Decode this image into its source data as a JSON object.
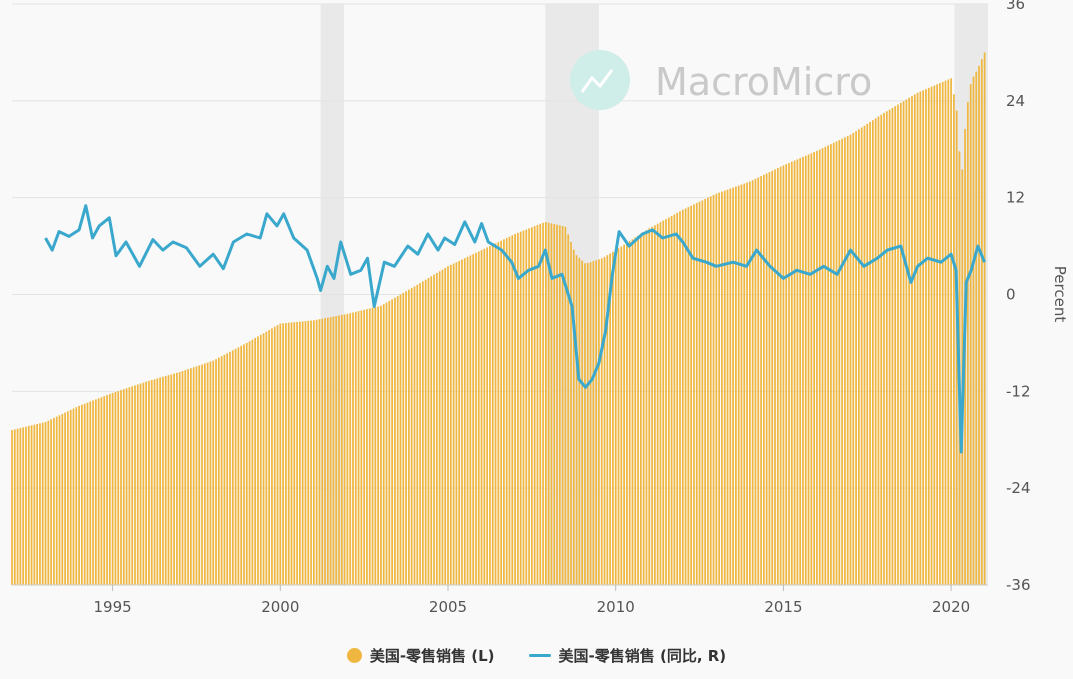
{
  "watermark": {
    "text": "MacroMicro",
    "icon": "macromicro-chart-logo-icon"
  },
  "chart_data": {
    "type": "bar+line",
    "x_range": [
      1992,
      2021.1
    ],
    "x_ticks": [
      1995,
      2000,
      2005,
      2010,
      2015,
      2020
    ],
    "y_right": {
      "label": "Percent",
      "range": [
        -36,
        36
      ],
      "ticks": [
        36,
        24,
        12,
        0,
        -12,
        -24,
        -36
      ]
    },
    "grid": true,
    "legend_position": "bottom-center",
    "recessions": [
      [
        2001.2,
        2001.9
      ],
      [
        2007.9,
        2009.5
      ],
      [
        2020.1,
        2021.1
      ]
    ],
    "series": [
      {
        "name": "美国-零售销售 (L)",
        "type": "bar",
        "axis": "left",
        "color": "#f0b740",
        "points": [
          [
            1992.0,
            -16.8
          ],
          [
            1993.0,
            -15.8
          ],
          [
            1994.0,
            -13.8
          ],
          [
            1995.0,
            -12.2
          ],
          [
            1996.0,
            -10.8
          ],
          [
            1997.0,
            -9.6
          ],
          [
            1998.0,
            -8.2
          ],
          [
            1999.0,
            -6.0
          ],
          [
            2000.0,
            -3.6
          ],
          [
            2001.0,
            -3.2
          ],
          [
            2002.0,
            -2.4
          ],
          [
            2003.0,
            -1.4
          ],
          [
            2004.0,
            1.0
          ],
          [
            2005.0,
            3.5
          ],
          [
            2006.0,
            5.5
          ],
          [
            2007.0,
            7.5
          ],
          [
            2007.9,
            9.0
          ],
          [
            2008.5,
            8.4
          ],
          [
            2008.8,
            5.0
          ],
          [
            2009.1,
            3.8
          ],
          [
            2009.6,
            4.5
          ],
          [
            2010.0,
            5.5
          ],
          [
            2011.0,
            8.2
          ],
          [
            2012.0,
            10.5
          ],
          [
            2013.0,
            12.5
          ],
          [
            2014.0,
            14.0
          ],
          [
            2015.0,
            16.0
          ],
          [
            2016.0,
            17.8
          ],
          [
            2017.0,
            19.8
          ],
          [
            2018.0,
            22.5
          ],
          [
            2019.0,
            25.0
          ],
          [
            2020.0,
            26.8
          ],
          [
            2020.2,
            22.0
          ],
          [
            2020.3,
            13.5
          ],
          [
            2020.45,
            22.5
          ],
          [
            2020.6,
            26.5
          ],
          [
            2020.8,
            28.0
          ],
          [
            2021.0,
            30.0
          ]
        ]
      },
      {
        "name": "美国-零售销售 (同比, R)",
        "type": "line",
        "axis": "right",
        "color": "#3aa8cc",
        "points": [
          [
            1993.0,
            7.0
          ],
          [
            1993.2,
            5.5
          ],
          [
            1993.4,
            7.8
          ],
          [
            1993.7,
            7.2
          ],
          [
            1994.0,
            8.0
          ],
          [
            1994.2,
            11.0
          ],
          [
            1994.4,
            7.0
          ],
          [
            1994.6,
            8.5
          ],
          [
            1994.9,
            9.5
          ],
          [
            1995.1,
            4.8
          ],
          [
            1995.4,
            6.5
          ],
          [
            1995.8,
            3.5
          ],
          [
            1996.2,
            6.8
          ],
          [
            1996.5,
            5.5
          ],
          [
            1996.8,
            6.5
          ],
          [
            1997.2,
            5.8
          ],
          [
            1997.6,
            3.5
          ],
          [
            1998.0,
            5.0
          ],
          [
            1998.3,
            3.2
          ],
          [
            1998.6,
            6.5
          ],
          [
            1999.0,
            7.5
          ],
          [
            1999.4,
            7.0
          ],
          [
            1999.6,
            10.0
          ],
          [
            1999.9,
            8.5
          ],
          [
            2000.1,
            10.0
          ],
          [
            2000.4,
            7.0
          ],
          [
            2000.8,
            5.5
          ],
          [
            2001.1,
            2.0
          ],
          [
            2001.2,
            0.5
          ],
          [
            2001.4,
            3.5
          ],
          [
            2001.6,
            2.0
          ],
          [
            2001.8,
            6.5
          ],
          [
            2002.1,
            2.5
          ],
          [
            2002.4,
            3.0
          ],
          [
            2002.6,
            4.5
          ],
          [
            2002.8,
            -1.5
          ],
          [
            2003.1,
            4.0
          ],
          [
            2003.4,
            3.5
          ],
          [
            2003.8,
            6.0
          ],
          [
            2004.1,
            5.0
          ],
          [
            2004.4,
            7.5
          ],
          [
            2004.7,
            5.5
          ],
          [
            2004.9,
            7.0
          ],
          [
            2005.2,
            6.2
          ],
          [
            2005.5,
            9.0
          ],
          [
            2005.8,
            6.5
          ],
          [
            2006.0,
            8.8
          ],
          [
            2006.2,
            6.5
          ],
          [
            2006.6,
            5.5
          ],
          [
            2006.9,
            4.0
          ],
          [
            2007.1,
            2.0
          ],
          [
            2007.4,
            3.0
          ],
          [
            2007.7,
            3.5
          ],
          [
            2007.9,
            5.5
          ],
          [
            2008.1,
            2.0
          ],
          [
            2008.4,
            2.5
          ],
          [
            2008.7,
            -1.5
          ],
          [
            2008.9,
            -10.5
          ],
          [
            2009.1,
            -11.5
          ],
          [
            2009.3,
            -10.5
          ],
          [
            2009.5,
            -8.5
          ],
          [
            2009.7,
            -4.5
          ],
          [
            2009.9,
            2.5
          ],
          [
            2010.1,
            7.8
          ],
          [
            2010.4,
            6.0
          ],
          [
            2010.8,
            7.5
          ],
          [
            2011.1,
            8.0
          ],
          [
            2011.4,
            7.0
          ],
          [
            2011.8,
            7.5
          ],
          [
            2012.0,
            6.5
          ],
          [
            2012.3,
            4.5
          ],
          [
            2012.7,
            4.0
          ],
          [
            2013.0,
            3.5
          ],
          [
            2013.5,
            4.0
          ],
          [
            2013.9,
            3.5
          ],
          [
            2014.2,
            5.5
          ],
          [
            2014.6,
            3.5
          ],
          [
            2015.0,
            2.0
          ],
          [
            2015.4,
            3.0
          ],
          [
            2015.8,
            2.5
          ],
          [
            2016.2,
            3.5
          ],
          [
            2016.6,
            2.5
          ],
          [
            2017.0,
            5.5
          ],
          [
            2017.4,
            3.5
          ],
          [
            2017.8,
            4.5
          ],
          [
            2018.1,
            5.5
          ],
          [
            2018.5,
            6.0
          ],
          [
            2018.8,
            1.5
          ],
          [
            2019.0,
            3.5
          ],
          [
            2019.3,
            4.5
          ],
          [
            2019.7,
            4.0
          ],
          [
            2020.0,
            5.0
          ],
          [
            2020.15,
            3.0
          ],
          [
            2020.3,
            -19.5
          ],
          [
            2020.45,
            1.5
          ],
          [
            2020.6,
            3.0
          ],
          [
            2020.8,
            6.0
          ],
          [
            2021.0,
            4.0
          ]
        ]
      }
    ]
  },
  "legend": [
    {
      "label": "美国-零售销售 (L)",
      "color": "#f0b740"
    },
    {
      "label": "美国-零售销售 (同比, R)",
      "color": "#3aa8cc"
    }
  ]
}
